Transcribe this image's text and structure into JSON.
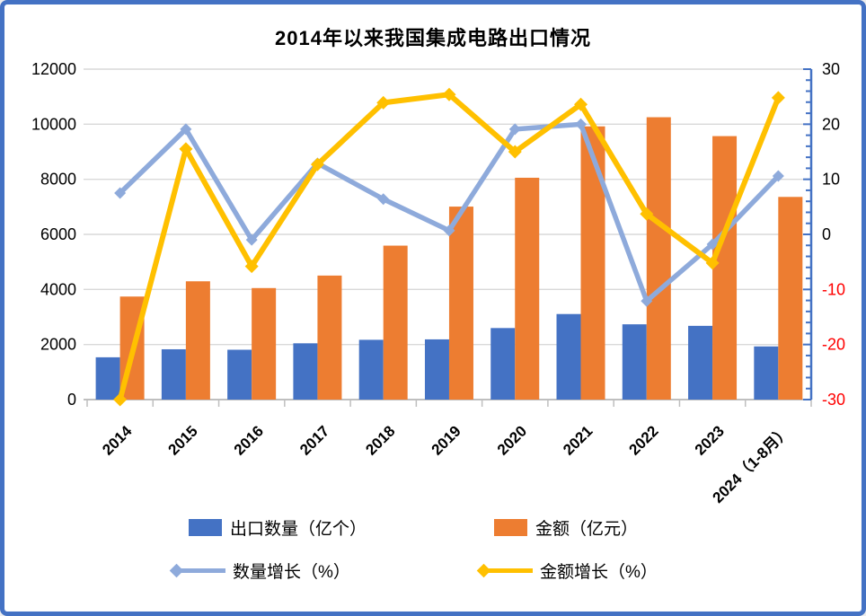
{
  "frame": {
    "border_color": "#4472C4",
    "background": "#FFFFFF"
  },
  "title": "2014年以来我国集成电路出口情况",
  "chart_data": {
    "type": "combo-bar-line",
    "title": "2014年以来我国集成电路出口情况",
    "categories": [
      "2014",
      "2015",
      "2016",
      "2017",
      "2018",
      "2019",
      "2020",
      "2021",
      "2022",
      "2023",
      "2024（1-8月）"
    ],
    "series": [
      {
        "name": "出口数量（亿个）",
        "type": "bar",
        "axis": "left",
        "color": "#4472C4",
        "values": [
          1536,
          1827,
          1810,
          2044,
          2171,
          2187,
          2598,
          3107,
          2734,
          2678,
          1931
        ]
      },
      {
        "name": "金额（亿元）",
        "type": "bar",
        "axis": "left",
        "color": "#ED7D31",
        "values": [
          3742,
          4296,
          4050,
          4504,
          5591,
          7008,
          8056,
          9922,
          10254,
          9568,
          7360
        ]
      },
      {
        "name": "数量增长（%）",
        "type": "line",
        "axis": "right",
        "marker": "diamond",
        "color": "#8EAADB",
        "values": [
          7.5,
          19.1,
          -1.0,
          12.9,
          6.4,
          0.7,
          19.1,
          20.0,
          -12.1,
          -1.8,
          10.6
        ]
      },
      {
        "name": "金额增长（%）",
        "type": "line",
        "axis": "right",
        "marker": "diamond",
        "color": "#FFC000",
        "values": [
          -30,
          15.5,
          -5.8,
          12.7,
          23.9,
          25.4,
          15.0,
          23.6,
          3.7,
          -5.2,
          24.8
        ]
      }
    ],
    "left_axis": {
      "min": 0,
      "max": 12000,
      "step": 2000,
      "tick_labels": [
        "0",
        "2000",
        "4000",
        "6000",
        "8000",
        "10000",
        "12000"
      ]
    },
    "right_axis": {
      "min": -30,
      "max": 30,
      "step": 10,
      "minor_step": 2,
      "tick_labels": [
        "-30",
        "-20",
        "-10",
        "0",
        "10",
        "20",
        "30"
      ],
      "axis_color": "#4472C4",
      "negative_label_color": "#FF0000"
    },
    "grid": true,
    "gridline_color": "#D9D9D9",
    "axis_gray": "#BFBFBF",
    "legend_position": "bottom"
  }
}
